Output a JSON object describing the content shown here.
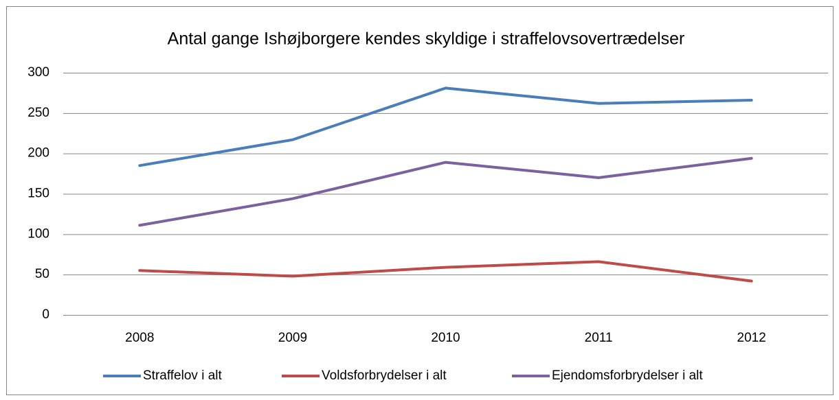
{
  "chart_data": {
    "type": "line",
    "title": "Antal gange Ishøjborgere kendes skyldige i straffelovsovertrædelser",
    "categories": [
      "2008",
      "2009",
      "2010",
      "2011",
      "2012"
    ],
    "series": [
      {
        "name": "Straffelov i alt",
        "color": "#4a7ebb",
        "values": [
          185,
          217,
          281,
          262,
          266
        ]
      },
      {
        "name": "Voldsforbrydelser i alt",
        "color": "#be4b48",
        "values": [
          55,
          48,
          59,
          66,
          42
        ]
      },
      {
        "name": "Ejendomsforbrydelser i alt",
        "color": "#7d60a0",
        "values": [
          111,
          144,
          189,
          170,
          194
        ]
      }
    ],
    "ylim": [
      0,
      300
    ],
    "yticks": [
      0,
      50,
      100,
      150,
      200,
      250,
      300
    ],
    "grid": true,
    "legend": "bottom"
  }
}
